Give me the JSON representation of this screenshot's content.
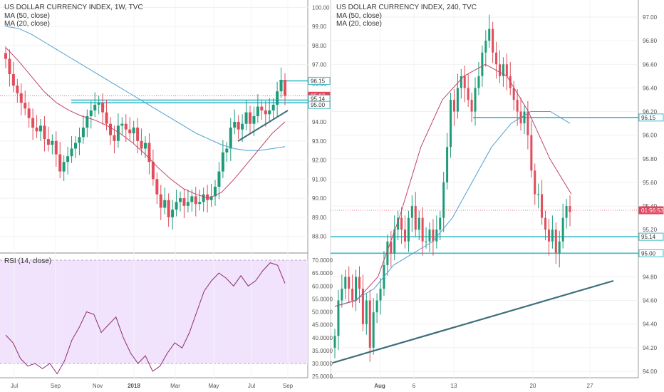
{
  "colors": {
    "up": "#1e9c79",
    "down": "#e04d5b",
    "ma50": "#4f9fd0",
    "ma20": "#c2426b",
    "rsi": "#8e2b73",
    "hline": "#3bbcc9",
    "trend": "#3b6e78",
    "rsi_band": "#f0e3fb",
    "price_tag": "#e0465e"
  },
  "left_chart": {
    "title": "US DOLLAR CURRENCY INDEX, 1W, TVC",
    "legend": [
      "MA (50, close)",
      "MA (20, close)"
    ],
    "price_axis": [
      "100.00",
      "99.00",
      "98.00",
      "97.00",
      "96.00",
      "95.00",
      "94.00",
      "93.00",
      "92.00",
      "91.00",
      "90.00",
      "89.00",
      "88.00"
    ],
    "time_axis": [
      "Jul",
      "Sep",
      "Nov",
      "2018",
      "Mar",
      "May",
      "Jul",
      "Sep"
    ],
    "tags": [
      {
        "label": "96.15",
        "kind": "hline"
      },
      {
        "label": "95.37",
        "kind": "price"
      },
      {
        "label": "95.14",
        "kind": "hline"
      },
      {
        "label": "95.00",
        "kind": "hline"
      }
    ]
  },
  "rsi_pane": {
    "title": "RSI (14, close)",
    "axis": [
      "70.0000",
      "65.0000",
      "60.0000",
      "55.0000",
      "50.0000",
      "45.0000",
      "40.0000",
      "35.0000",
      "30.0000",
      "25.0000"
    ]
  },
  "right_chart": {
    "title": "US DOLLAR CURRENCY INDEX, 240, TVC",
    "legend": [
      "MA (50, close)",
      "MA (20, close)"
    ],
    "price_axis": [
      "97.00",
      "96.80",
      "96.60",
      "96.40",
      "96.20",
      "96.00",
      "95.80",
      "95.60",
      "95.40",
      "95.20",
      "95.00",
      "94.80",
      "94.60",
      "94.40",
      "94.20",
      "94.00"
    ],
    "time_axis": [
      "Aug",
      "6",
      "13",
      "20",
      "27"
    ],
    "tags": [
      {
        "label": "96.15",
        "kind": "hline"
      },
      {
        "label": "01:56:53",
        "kind": "price"
      },
      {
        "label": "95.14",
        "kind": "hline"
      },
      {
        "label": "95.00",
        "kind": "hline"
      }
    ]
  },
  "chart_data": [
    {
      "type": "candlestick",
      "title": "US DOLLAR CURRENCY INDEX, 1W, TVC",
      "timeframe": "1W",
      "ylim": [
        87.5,
        100.2
      ],
      "last_price": 95.37,
      "horizontal_levels": [
        96.15,
        95.14,
        95.0
      ],
      "trendline": {
        "from": [
          93.1,
          "Jun 2018"
        ],
        "to": [
          95.1,
          "Aug 2018"
        ]
      },
      "close": [
        97.3,
        96.5,
        95.9,
        95.5,
        95.0,
        94.7,
        94.2,
        93.7,
        93.5,
        93.8,
        93.1,
        92.8,
        93.0,
        92.3,
        91.4,
        91.9,
        92.2,
        92.6,
        92.9,
        93.2,
        93.7,
        94.3,
        94.6,
        94.9,
        95.0,
        94.5,
        93.9,
        93.3,
        93.0,
        93.8,
        93.9,
        93.6,
        93.4,
        93.7,
        93.0,
        92.6,
        92.9,
        91.9,
        91.0,
        90.2,
        89.5,
        89.9,
        89.0,
        89.4,
        89.8,
        90.0,
        89.6,
        89.8,
        90.1,
        89.7,
        89.8,
        90.2,
        89.9,
        90.1,
        90.6,
        91.4,
        92.4,
        92.6,
        93.7,
        94.0,
        93.6,
        93.9,
        94.5,
        93.9,
        94.3,
        94.8,
        94.6,
        94.4,
        94.6,
        94.9,
        95.6,
        96.2,
        95.37
      ],
      "series_ma": [
        {
          "label": "MA (50, close)",
          "values": [
            99.0,
            98.9,
            98.6,
            98.2,
            97.8,
            97.4,
            97.0,
            96.6,
            96.2,
            95.8,
            95.4,
            95.0,
            94.6,
            94.2,
            93.8,
            93.4,
            93.1,
            92.8,
            92.6,
            92.5,
            92.5,
            92.6,
            92.7
          ]
        },
        {
          "label": "MA (20, close)",
          "values": [
            97.9,
            97.2,
            96.4,
            95.6,
            95.0,
            94.6,
            94.3,
            94.1,
            93.8,
            93.4,
            92.9,
            92.3,
            91.6,
            91.0,
            90.5,
            90.2,
            90.0,
            90.3,
            91.0,
            91.8,
            92.6,
            93.4,
            94.0
          ]
        }
      ]
    },
    {
      "type": "line",
      "title": "RSI (14, close)",
      "ylim": [
        24.5,
        70.5
      ],
      "band": [
        30,
        70
      ],
      "values": [
        41,
        38,
        32,
        29,
        30,
        28,
        30,
        26,
        31,
        39,
        44,
        50,
        49,
        42,
        45,
        48,
        40,
        34,
        30,
        33,
        27,
        29,
        34,
        38,
        36,
        42,
        50,
        58,
        62,
        65,
        63,
        60,
        64,
        60,
        62,
        66,
        69,
        68,
        61
      ]
    },
    {
      "type": "candlestick",
      "title": "US DOLLAR CURRENCY INDEX, 240, TVC",
      "timeframe": "240",
      "ylim": [
        93.9,
        97.15
      ],
      "last_price_label": "01:56:53",
      "horizontal_levels": [
        96.15,
        95.14,
        95.0
      ],
      "trendline": {
        "from": [
          94.18,
          "Jul 30"
        ],
        "to": [
          94.76,
          "Aug 24"
        ]
      },
      "close": [
        94.3,
        94.6,
        94.7,
        94.8,
        94.7,
        94.6,
        94.8,
        94.7,
        94.4,
        94.6,
        94.2,
        94.5,
        94.6,
        94.7,
        94.9,
        95.1,
        95.0,
        95.2,
        95.3,
        95.2,
        95.1,
        95.3,
        95.4,
        95.2,
        95.3,
        95.1,
        95.1,
        95.2,
        95.1,
        95.2,
        95.3,
        95.6,
        95.9,
        96.3,
        96.2,
        96.4,
        96.5,
        96.4,
        96.3,
        96.2,
        96.4,
        96.5,
        96.7,
        96.8,
        96.9,
        96.7,
        96.6,
        96.5,
        96.6,
        96.5,
        96.4,
        96.3,
        96.2,
        96.1,
        96.2,
        96.0,
        95.7,
        95.5,
        95.5,
        95.3,
        95.2,
        95.1,
        95.2,
        95.0,
        95.1,
        95.3,
        95.4,
        95.35
      ],
      "series_ma": [
        {
          "label": "MA (50, close)",
          "values": [
            94.55,
            94.6,
            94.7,
            94.9,
            95.0,
            95.1,
            95.3,
            95.6,
            95.9,
            96.1,
            96.2,
            96.2,
            96.1
          ]
        },
        {
          "label": "MA (20, close)",
          "values": [
            94.55,
            94.6,
            94.8,
            95.3,
            95.9,
            96.3,
            96.5,
            96.6,
            96.5,
            96.2,
            95.8,
            95.5
          ]
        }
      ]
    }
  ]
}
